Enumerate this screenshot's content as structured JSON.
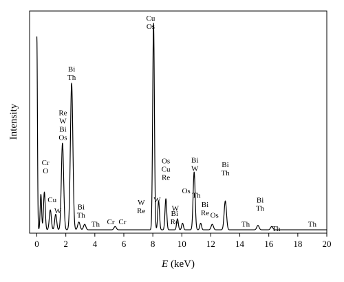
{
  "chart_data": {
    "type": "line",
    "xlabel_var": "E",
    "xlabel_unit": " (keV)",
    "ylabel": "Intensity",
    "xlim": [
      -0.5,
      20
    ],
    "ylim": [
      0,
      100
    ],
    "x_ticks": [
      0,
      2,
      4,
      6,
      8,
      10,
      12,
      14,
      16,
      18,
      20
    ],
    "grid": false,
    "legend": "none",
    "line_color": "#000000",
    "series": [
      {
        "background": 1.5,
        "peaks": [
          {
            "x": 0.0,
            "height": 87,
            "sigma": 0.04
          },
          {
            "x": 0.28,
            "height": 16,
            "sigma": 0.05
          },
          {
            "x": 0.52,
            "height": 17,
            "sigma": 0.06
          },
          {
            "x": 0.93,
            "height": 9,
            "sigma": 0.07
          },
          {
            "x": 1.3,
            "height": 7,
            "sigma": 0.07
          },
          {
            "x": 1.77,
            "height": 39,
            "sigma": 0.08
          },
          {
            "x": 2.4,
            "height": 66,
            "sigma": 0.085
          },
          {
            "x": 2.9,
            "height": 3.5,
            "sigma": 0.08
          },
          {
            "x": 3.3,
            "height": 2.5,
            "sigma": 0.08
          },
          {
            "x": 5.4,
            "height": 1.5,
            "sigma": 0.08
          },
          {
            "x": 8.05,
            "height": 93,
            "sigma": 0.06
          },
          {
            "x": 8.4,
            "height": 13,
            "sigma": 0.06
          },
          {
            "x": 8.9,
            "height": 14,
            "sigma": 0.06
          },
          {
            "x": 9.7,
            "height": 5,
            "sigma": 0.06
          },
          {
            "x": 10.05,
            "height": 3,
            "sigma": 0.06
          },
          {
            "x": 10.85,
            "height": 26,
            "sigma": 0.07
          },
          {
            "x": 11.3,
            "height": 3,
            "sigma": 0.06
          },
          {
            "x": 12.1,
            "height": 2.5,
            "sigma": 0.08
          },
          {
            "x": 13.0,
            "height": 13,
            "sigma": 0.08
          },
          {
            "x": 15.25,
            "height": 2,
            "sigma": 0.08
          },
          {
            "x": 16.2,
            "height": 1.5,
            "sigma": 0.08
          }
        ]
      }
    ],
    "annotations": [
      {
        "lines": [
          "Cr",
          "O"
        ],
        "x": 0.6,
        "y": 27
      },
      {
        "lines": [
          "Cu"
        ],
        "x": 1.05,
        "y": 14
      },
      {
        "lines": [
          "W"
        ],
        "x": 1.45,
        "y": 9
      },
      {
        "lines": [
          "Re",
          "W",
          "Bi",
          "Os"
        ],
        "x": 1.8,
        "y": 42
      },
      {
        "lines": [
          "Bi",
          "Th"
        ],
        "x": 2.4,
        "y": 69
      },
      {
        "lines": [
          "Bi",
          "Th"
        ],
        "x": 3.05,
        "y": 7
      },
      {
        "lines": [
          "Th"
        ],
        "x": 4.05,
        "y": 3
      },
      {
        "lines": [
          "Cr"
        ],
        "x": 5.1,
        "y": 4
      },
      {
        "lines": [
          "Cr"
        ],
        "x": 5.9,
        "y": 4
      },
      {
        "lines": [
          "Cu",
          "Os"
        ],
        "x": 7.85,
        "y": 92
      },
      {
        "lines": [
          "W",
          "Re"
        ],
        "x": 7.2,
        "y": 9
      },
      {
        "lines": [
          "W"
        ],
        "x": 8.3,
        "y": 14
      },
      {
        "lines": [
          "Os",
          "Cu",
          "Re"
        ],
        "x": 8.9,
        "y": 24
      },
      {
        "lines": [
          "W"
        ],
        "x": 9.55,
        "y": 10
      },
      {
        "lines": [
          "Bi",
          "Re"
        ],
        "x": 9.5,
        "y": 4
      },
      {
        "lines": [
          "Os"
        ],
        "x": 10.3,
        "y": 18
      },
      {
        "lines": [
          "Bi",
          "W"
        ],
        "x": 10.9,
        "y": 28
      },
      {
        "lines": [
          "Th"
        ],
        "x": 11.0,
        "y": 16
      },
      {
        "lines": [
          "Bi",
          "Re"
        ],
        "x": 11.6,
        "y": 8
      },
      {
        "lines": [
          "Os"
        ],
        "x": 12.25,
        "y": 7
      },
      {
        "lines": [
          "Bi",
          "Th"
        ],
        "x": 13.0,
        "y": 26
      },
      {
        "lines": [
          "Th"
        ],
        "x": 14.4,
        "y": 3
      },
      {
        "lines": [
          "Bi",
          "Th"
        ],
        "x": 15.4,
        "y": 10
      },
      {
        "lines": [
          "Th"
        ],
        "x": 16.5,
        "y": 1
      },
      {
        "lines": [
          "Th"
        ],
        "x": 19.0,
        "y": 3
      }
    ]
  }
}
